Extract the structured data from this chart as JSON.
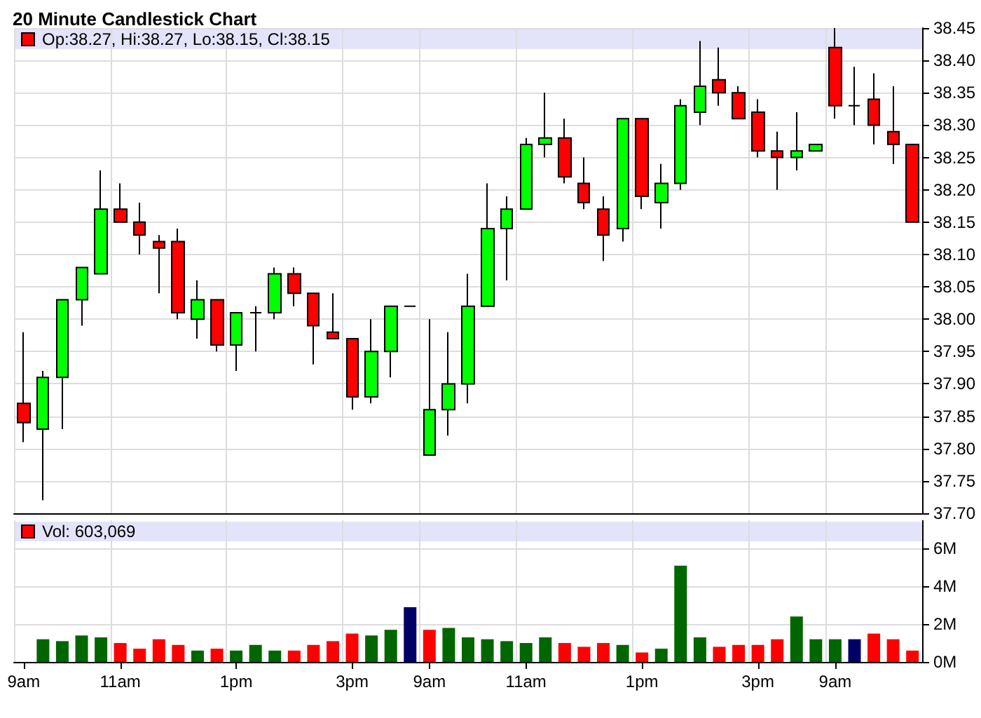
{
  "chart_data": [
    {
      "type": "candlestick",
      "title": "20 Minute Candlestick Chart",
      "annotations": [
        "Op:38.27, Hi:38.27, Lo:38.15, Cl:38.15"
      ],
      "categories": [
        null,
        null,
        null,
        null,
        null,
        null,
        null,
        null,
        null,
        null,
        null,
        null,
        null,
        null,
        null,
        null,
        null,
        null,
        null,
        null,
        null,
        null,
        null,
        null,
        null,
        null,
        null,
        null,
        null,
        null,
        null,
        null,
        null,
        null,
        null,
        null,
        null,
        null,
        null,
        null,
        null,
        null,
        null,
        null,
        null,
        null,
        null
      ],
      "ohlc": [
        [
          37.87,
          37.98,
          37.81,
          37.84
        ],
        [
          37.83,
          37.92,
          37.72,
          37.91
        ],
        [
          37.91,
          38.03,
          37.83,
          38.03
        ],
        [
          38.03,
          38.08,
          37.99,
          38.08
        ],
        [
          38.07,
          38.23,
          38.07,
          38.17
        ],
        [
          38.17,
          38.21,
          38.15,
          38.15
        ],
        [
          38.15,
          38.18,
          38.1,
          38.13
        ],
        [
          38.12,
          38.13,
          38.04,
          38.11
        ],
        [
          38.12,
          38.14,
          38.0,
          38.01
        ],
        [
          38.0,
          38.06,
          37.97,
          38.03
        ],
        [
          38.03,
          38.03,
          37.95,
          37.96
        ],
        [
          37.96,
          38.01,
          37.92,
          38.01
        ],
        [
          38.01,
          38.02,
          37.95,
          38.01
        ],
        [
          38.01,
          38.08,
          38.0,
          38.07
        ],
        [
          38.07,
          38.08,
          38.02,
          38.04
        ],
        [
          38.04,
          38.04,
          37.93,
          37.99
        ],
        [
          37.98,
          38.04,
          37.97,
          37.97
        ],
        [
          37.97,
          37.97,
          37.86,
          37.88
        ],
        [
          37.88,
          38.0,
          37.87,
          37.95
        ],
        [
          37.95,
          38.02,
          37.91,
          38.02
        ],
        [
          38.02,
          38.02,
          38.02,
          38.02
        ],
        [
          37.79,
          38.0,
          37.79,
          37.86
        ],
        [
          37.86,
          37.98,
          37.82,
          37.9
        ],
        [
          37.9,
          38.07,
          37.87,
          38.02
        ],
        [
          38.02,
          38.21,
          38.02,
          38.14
        ],
        [
          38.14,
          38.19,
          38.06,
          38.17
        ],
        [
          38.17,
          38.28,
          38.17,
          38.27
        ],
        [
          38.27,
          38.35,
          38.25,
          38.28
        ],
        [
          38.28,
          38.31,
          38.21,
          38.22
        ],
        [
          38.21,
          38.25,
          38.17,
          38.18
        ],
        [
          38.17,
          38.19,
          38.09,
          38.13
        ],
        [
          38.14,
          38.31,
          38.12,
          38.31
        ],
        [
          38.31,
          38.31,
          38.17,
          38.19
        ],
        [
          38.18,
          38.24,
          38.14,
          38.21
        ],
        [
          38.21,
          38.34,
          38.2,
          38.33
        ],
        [
          38.32,
          38.43,
          38.3,
          38.36
        ],
        [
          38.37,
          38.42,
          38.33,
          38.35
        ],
        [
          38.35,
          38.36,
          38.31,
          38.31
        ],
        [
          38.32,
          38.34,
          38.25,
          38.26
        ],
        [
          38.26,
          38.29,
          38.2,
          38.25
        ],
        [
          38.25,
          38.32,
          38.23,
          38.26
        ],
        [
          38.26,
          38.27,
          38.26,
          38.27
        ],
        [
          38.42,
          38.45,
          38.31,
          38.33
        ],
        [
          38.33,
          38.39,
          38.3,
          38.33
        ],
        [
          38.34,
          38.38,
          38.27,
          38.3
        ],
        [
          38.29,
          38.36,
          38.24,
          38.27
        ],
        [
          38.27,
          38.27,
          38.15,
          38.15
        ]
      ],
      "colors": [
        "#ff0000",
        "#00ff00",
        "#00ff00",
        "#00ff00",
        "#00ff00",
        "#ff0000",
        "#ff0000",
        "#ff0000",
        "#ff0000",
        "#00ff00",
        "#ff0000",
        "#00ff00",
        "#000000",
        "#00ff00",
        "#ff0000",
        "#ff0000",
        "#ff0000",
        "#ff0000",
        "#00ff00",
        "#00ff00",
        "#000000",
        "#00ff00",
        "#00ff00",
        "#00ff00",
        "#00ff00",
        "#00ff00",
        "#00ff00",
        "#00ff00",
        "#ff0000",
        "#ff0000",
        "#ff0000",
        "#00ff00",
        "#ff0000",
        "#00ff00",
        "#00ff00",
        "#00ff00",
        "#ff0000",
        "#ff0000",
        "#ff0000",
        "#ff0000",
        "#00ff00",
        "#00ff00",
        "#ff0000",
        "#000000",
        "#ff0000",
        "#ff0000",
        "#ff0000"
      ],
      "ylim": [
        37.7,
        38.45
      ],
      "yticks": [
        {
          "value": 37.7,
          "label": "37.70"
        },
        {
          "value": 37.75,
          "label": "37.75"
        },
        {
          "value": 37.8,
          "label": "37.80"
        },
        {
          "value": 37.85,
          "label": "37.85"
        },
        {
          "value": 37.9,
          "label": "37.90"
        },
        {
          "value": 37.95,
          "label": "37.95"
        },
        {
          "value": 38.0,
          "label": "38.00"
        },
        {
          "value": 38.05,
          "label": "38.05"
        },
        {
          "value": 38.1,
          "label": "38.10"
        },
        {
          "value": 38.15,
          "label": "38.15"
        },
        {
          "value": 38.2,
          "label": "38.20"
        },
        {
          "value": 38.25,
          "label": "38.25"
        },
        {
          "value": 38.3,
          "label": "38.30"
        },
        {
          "value": 38.35,
          "label": "38.35"
        },
        {
          "value": 38.4,
          "label": "38.40"
        },
        {
          "value": 38.45,
          "label": "38.45"
        }
      ],
      "grid": true,
      "tick_labels": "y"
    },
    {
      "type": "bar",
      "annotations": [
        "Vol: 603,069"
      ],
      "categories": [
        "9am",
        null,
        null,
        null,
        null,
        "11am",
        null,
        null,
        null,
        null,
        null,
        "1pm",
        null,
        null,
        null,
        null,
        null,
        "3pm",
        null,
        null,
        null,
        "9am",
        null,
        null,
        null,
        null,
        "11am",
        null,
        null,
        null,
        null,
        null,
        "1pm",
        null,
        null,
        null,
        null,
        null,
        "3pm",
        null,
        null,
        null,
        "9am",
        null,
        null,
        null,
        null
      ],
      "values": [
        null,
        1.2,
        1.1,
        1.4,
        1.3,
        1.0,
        0.7,
        1.2,
        0.9,
        0.6,
        0.7,
        0.6,
        0.9,
        0.6,
        0.6,
        0.9,
        1.1,
        1.5,
        1.4,
        1.7,
        2.9,
        1.7,
        1.8,
        1.3,
        1.2,
        1.1,
        1.0,
        1.3,
        1.0,
        0.8,
        1.0,
        0.9,
        0.5,
        0.7,
        5.1,
        1.3,
        0.8,
        0.9,
        0.9,
        1.2,
        2.4,
        1.2,
        1.2,
        1.2,
        1.5,
        1.2,
        0.6
      ],
      "colors": [
        "#006600",
        "#006600",
        "#006600",
        "#006600",
        "#006600",
        "#ff0000",
        "#ff0000",
        "#ff0000",
        "#ff0000",
        "#006600",
        "#ff0000",
        "#006600",
        "#006600",
        "#006600",
        "#ff0000",
        "#ff0000",
        "#ff0000",
        "#ff0000",
        "#006600",
        "#006600",
        "#000066",
        "#ff0000",
        "#006600",
        "#006600",
        "#006600",
        "#006600",
        "#006600",
        "#006600",
        "#ff0000",
        "#ff0000",
        "#ff0000",
        "#006600",
        "#ff0000",
        "#006600",
        "#006600",
        "#006600",
        "#ff0000",
        "#ff0000",
        "#ff0000",
        "#ff0000",
        "#006600",
        "#006600",
        "#006600",
        "#000066",
        "#ff0000",
        "#ff0000",
        "#ff0000"
      ],
      "ylim": [
        0,
        7.5
      ],
      "yticks": [
        {
          "value": 0,
          "label": "0M"
        },
        {
          "value": 2,
          "label": "2M"
        },
        {
          "value": 4,
          "label": "4M"
        },
        {
          "value": 6,
          "label": "6M"
        }
      ],
      "grid": true
    }
  ]
}
